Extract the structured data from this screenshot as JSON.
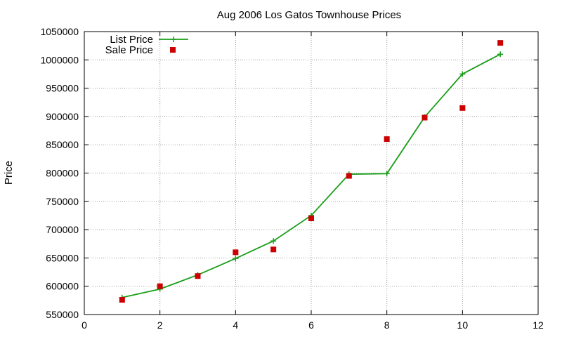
{
  "chart_data": {
    "type": "line",
    "title": "Aug 2006 Los Gatos Townhouse Prices",
    "xlabel": "",
    "ylabel": "Price",
    "xlim": [
      0,
      12
    ],
    "ylim": [
      550000,
      1050000
    ],
    "xticks": [
      0,
      2,
      4,
      6,
      8,
      10,
      12
    ],
    "yticks": [
      550000,
      600000,
      650000,
      700000,
      750000,
      800000,
      850000,
      900000,
      950000,
      1000000,
      1050000
    ],
    "grid": true,
    "legend_position": "top-left",
    "series": [
      {
        "name": "List Price",
        "style": "line-points",
        "marker": "plus",
        "color": "#1a9e1a",
        "x": [
          1,
          2,
          3,
          4,
          5,
          6,
          7,
          8,
          9,
          10,
          11
        ],
        "y": [
          580000,
          595000,
          620000,
          649000,
          680000,
          725000,
          798000,
          799000,
          899000,
          975000,
          1010000
        ]
      },
      {
        "name": "Sale Price",
        "style": "points",
        "marker": "square",
        "color": "#cc0000",
        "x": [
          1,
          2,
          3,
          4,
          5,
          6,
          7,
          8,
          9,
          10,
          11
        ],
        "y": [
          576000,
          600000,
          618000,
          660000,
          665000,
          720000,
          795000,
          860000,
          898000,
          915000,
          1030000
        ]
      }
    ]
  }
}
